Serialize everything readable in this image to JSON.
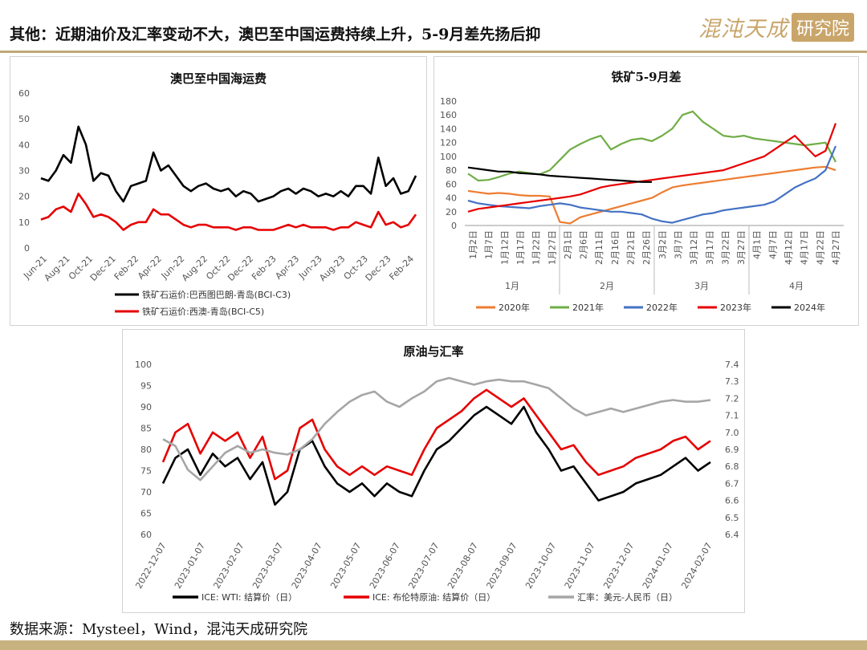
{
  "header": {
    "title_key": "其他",
    "title_rest": "：近期油价及汇率变动不大，澳巴至中国运费持续上升，5-9月差先扬后抑",
    "logo_text": "混沌天成",
    "logo_badge": "研究院"
  },
  "source": "数据来源：Mysteel，Wind，混沌天成研究院",
  "colors": {
    "accent": "#bfa877",
    "black": "#000000",
    "red": "#e60000",
    "grey": "#a6a6a6",
    "orange": "#ed7d31",
    "green": "#70ad47",
    "blue": "#4472c4"
  },
  "chart_data": [
    {
      "id": "freight",
      "type": "line",
      "title": "澳巴至中国海运费",
      "ylim": [
        0,
        60
      ],
      "yticks": [
        "0",
        "10",
        "20",
        "30",
        "40",
        "50",
        "60"
      ],
      "xticks": [
        "Jun-21",
        "Aug-21",
        "Oct-21",
        "Dec-21",
        "Feb-22",
        "Apr-22",
        "Jun-22",
        "Aug-22",
        "Oct-22",
        "Dec-22",
        "Feb-23",
        "Apr-23",
        "Jun-23",
        "Aug-23",
        "Oct-23",
        "Dec-23",
        "Feb-24"
      ],
      "series": [
        {
          "name": "铁矿石运价:巴西图巴朗-青岛(BCI-C3)",
          "color": "#000000",
          "values": [
            27,
            26,
            30,
            36,
            33,
            47,
            40,
            26,
            29,
            28,
            22,
            18,
            24,
            25,
            26,
            37,
            30,
            32,
            28,
            24,
            22,
            24,
            25,
            23,
            22,
            23,
            20,
            22,
            21,
            18,
            19,
            20,
            22,
            23,
            21,
            23,
            22,
            20,
            21,
            20,
            22,
            20,
            24,
            24,
            21,
            35,
            24,
            27,
            21,
            22,
            28
          ]
        },
        {
          "name": "铁矿石运价:西澳-青岛(BCI-C5)",
          "color": "#e60000",
          "values": [
            11,
            12,
            15,
            16,
            14,
            21,
            17,
            12,
            13,
            12,
            10,
            7,
            9,
            10,
            10,
            15,
            13,
            13,
            11,
            9,
            8,
            9,
            9,
            8,
            8,
            8,
            7,
            8,
            8,
            7,
            7,
            7,
            8,
            9,
            8,
            9,
            8,
            8,
            8,
            7,
            8,
            8,
            10,
            9,
            8,
            14,
            9,
            10,
            8,
            9,
            13
          ]
        }
      ]
    },
    {
      "id": "spread",
      "type": "line",
      "title": "铁矿5-9月差",
      "ylim": [
        0,
        180
      ],
      "yticks": [
        "0",
        "20",
        "40",
        "60",
        "80",
        "100",
        "120",
        "140",
        "160",
        "180"
      ],
      "xticks": [
        "1月2日",
        "1月7日",
        "1月12日",
        "1月17日",
        "1月22日",
        "1月27日",
        "2月1日",
        "2月6日",
        "2月11日",
        "2月16日",
        "2月21日",
        "2月26日",
        "3月2日",
        "3月7日",
        "3月12日",
        "3月17日",
        "3月22日",
        "3月27日",
        "4月1日",
        "4月7日",
        "4月12日",
        "4月17日",
        "4月22日",
        "4月27日"
      ],
      "months": [
        "1月",
        "2月",
        "3月",
        "4月"
      ],
      "series": [
        {
          "name": "2020年",
          "color": "#ed7d31",
          "values": [
            50,
            48,
            46,
            47,
            46,
            44,
            43,
            43,
            42,
            5,
            3,
            12,
            16,
            20,
            24,
            28,
            32,
            36,
            40,
            48,
            55,
            58,
            60,
            62,
            64,
            66,
            68,
            70,
            72,
            74,
            76,
            78,
            80,
            82,
            84,
            85,
            80
          ]
        },
        {
          "name": "2021年",
          "color": "#70ad47",
          "values": [
            75,
            65,
            66,
            70,
            75,
            78,
            76,
            74,
            80,
            95,
            110,
            118,
            125,
            130,
            110,
            118,
            124,
            126,
            122,
            130,
            140,
            160,
            165,
            150,
            140,
            130,
            128,
            130,
            126,
            124,
            122,
            120,
            118,
            116,
            118,
            120,
            92
          ]
        },
        {
          "name": "2022年",
          "color": "#4472c4",
          "values": [
            36,
            32,
            30,
            28,
            27,
            26,
            25,
            28,
            30,
            32,
            30,
            26,
            24,
            22,
            20,
            20,
            18,
            16,
            10,
            6,
            4,
            8,
            12,
            16,
            18,
            22,
            24,
            26,
            28,
            30,
            35,
            45,
            55,
            62,
            68,
            80,
            115
          ]
        },
        {
          "name": "2023年",
          "color": "#e60000",
          "values": [
            20,
            24,
            26,
            28,
            30,
            32,
            34,
            36,
            38,
            40,
            42,
            45,
            50,
            55,
            58,
            60,
            62,
            64,
            66,
            68,
            70,
            72,
            74,
            76,
            78,
            80,
            85,
            90,
            95,
            100,
            110,
            120,
            130,
            115,
            100,
            108,
            148
          ]
        },
        {
          "name": "2024年",
          "color": "#000000",
          "values": [
            84,
            82,
            80,
            78,
            78,
            76,
            75,
            74,
            72,
            71,
            70,
            69,
            68,
            67,
            66,
            65,
            64,
            63,
            63
          ]
        }
      ]
    },
    {
      "id": "oil-fx",
      "type": "line",
      "title": "原油与汇率",
      "ylim": [
        60,
        100
      ],
      "y2lim": [
        6.4,
        7.4
      ],
      "yticks": [
        "60",
        "65",
        "70",
        "75",
        "80",
        "85",
        "90",
        "95",
        "100"
      ],
      "y2ticks": [
        "6.4",
        "6.5",
        "6.6",
        "6.7",
        "6.8",
        "6.9",
        "7.0",
        "7.1",
        "7.2",
        "7.3",
        "7.4"
      ],
      "xticks": [
        "2022-12-07",
        "2023-01-07",
        "2023-02-07",
        "2023-03-07",
        "2023-04-07",
        "2023-05-07",
        "2023-06-07",
        "2023-07-07",
        "2023-08-07",
        "2023-09-07",
        "2023-10-07",
        "2023-11-07",
        "2023-12-07",
        "2024-01-07",
        "2024-02-07"
      ],
      "series": [
        {
          "name": "ICE: WTI: 结算价（日）",
          "color": "#000000",
          "axis": "left",
          "values": [
            72,
            78,
            80,
            74,
            79,
            76,
            78,
            73,
            77,
            67,
            70,
            80,
            82,
            76,
            72,
            70,
            72,
            69,
            72,
            70,
            69,
            75,
            80,
            82,
            85,
            88,
            90,
            88,
            86,
            90,
            84,
            80,
            75,
            76,
            72,
            68,
            69,
            70,
            72,
            73,
            74,
            76,
            78,
            75,
            77
          ]
        },
        {
          "name": "ICE: 布伦特原油: 结算价（日）",
          "color": "#e60000",
          "axis": "left",
          "values": [
            77,
            84,
            86,
            79,
            84,
            82,
            84,
            78,
            83,
            73,
            75,
            85,
            87,
            80,
            76,
            74,
            76,
            74,
            76,
            75,
            74,
            80,
            85,
            87,
            89,
            92,
            94,
            92,
            90,
            92,
            88,
            84,
            80,
            81,
            77,
            74,
            75,
            76,
            78,
            79,
            80,
            82,
            83,
            80,
            82
          ]
        },
        {
          "name": "汇率：美元-人民币（日）",
          "color": "#a6a6a6",
          "axis": "right",
          "values": [
            6.96,
            6.92,
            6.78,
            6.72,
            6.8,
            6.88,
            6.92,
            6.88,
            6.9,
            6.88,
            6.87,
            6.9,
            6.96,
            7.05,
            7.12,
            7.18,
            7.22,
            7.24,
            7.18,
            7.15,
            7.2,
            7.24,
            7.3,
            7.32,
            7.3,
            7.28,
            7.3,
            7.31,
            7.3,
            7.3,
            7.28,
            7.26,
            7.2,
            7.14,
            7.1,
            7.12,
            7.14,
            7.12,
            7.14,
            7.16,
            7.18,
            7.19,
            7.18,
            7.18,
            7.19
          ]
        }
      ]
    }
  ]
}
